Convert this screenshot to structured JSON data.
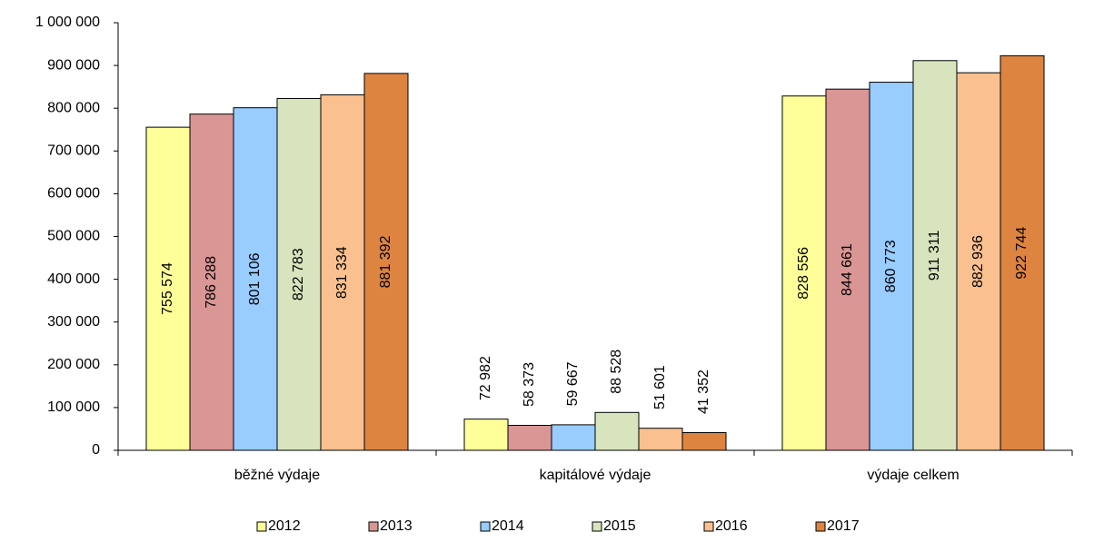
{
  "chart_data": {
    "type": "bar",
    "categories": [
      "běžné výdaje",
      "kapitálové výdaje",
      "výdaje celkem"
    ],
    "series": [
      {
        "name": "2012",
        "color": "#ffff99",
        "values": [
          755574,
          72982,
          828556
        ],
        "value_labels": [
          "755 574",
          "72 982",
          "828 556"
        ]
      },
      {
        "name": "2013",
        "color": "#d99694",
        "values": [
          786288,
          58373,
          844661
        ],
        "value_labels": [
          "786 288",
          "58 373",
          "844 661"
        ]
      },
      {
        "name": "2014",
        "color": "#99ccff",
        "values": [
          801106,
          59667,
          860773
        ],
        "value_labels": [
          "801 106",
          "59 667",
          "860 773"
        ]
      },
      {
        "name": "2015",
        "color": "#d7e4bd",
        "values": [
          822783,
          88528,
          911311
        ],
        "value_labels": [
          "822 783",
          "88 528",
          "911 311"
        ]
      },
      {
        "name": "2016",
        "color": "#fac090",
        "values": [
          831334,
          51601,
          882936
        ],
        "value_labels": [
          "831 334",
          "51 601",
          "882 936"
        ]
      },
      {
        "name": "2017",
        "color": "#dd8440",
        "values": [
          881392,
          41352,
          922744
        ],
        "value_labels": [
          "881 392",
          "41 352",
          "922 744"
        ]
      }
    ],
    "ylim": [
      0,
      1000000
    ],
    "yticks": [
      0,
      {
        "value": 100000,
        "label": "100 000"
      },
      {
        "value": 200000,
        "label": "200 000"
      },
      {
        "value": 300000,
        "label": "300 000"
      },
      {
        "value": 400000,
        "label": "400 000"
      },
      {
        "value": 500000,
        "label": "500 000"
      },
      {
        "value": 600000,
        "label": "600 000"
      },
      {
        "value": 700000,
        "label": "700 000"
      },
      {
        "value": 800000,
        "label": "800 000"
      },
      {
        "value": 900000,
        "label": "900 000"
      },
      {
        "value": 1000000,
        "label": "1 000 000"
      }
    ],
    "grid": false,
    "legend": "bottom"
  }
}
